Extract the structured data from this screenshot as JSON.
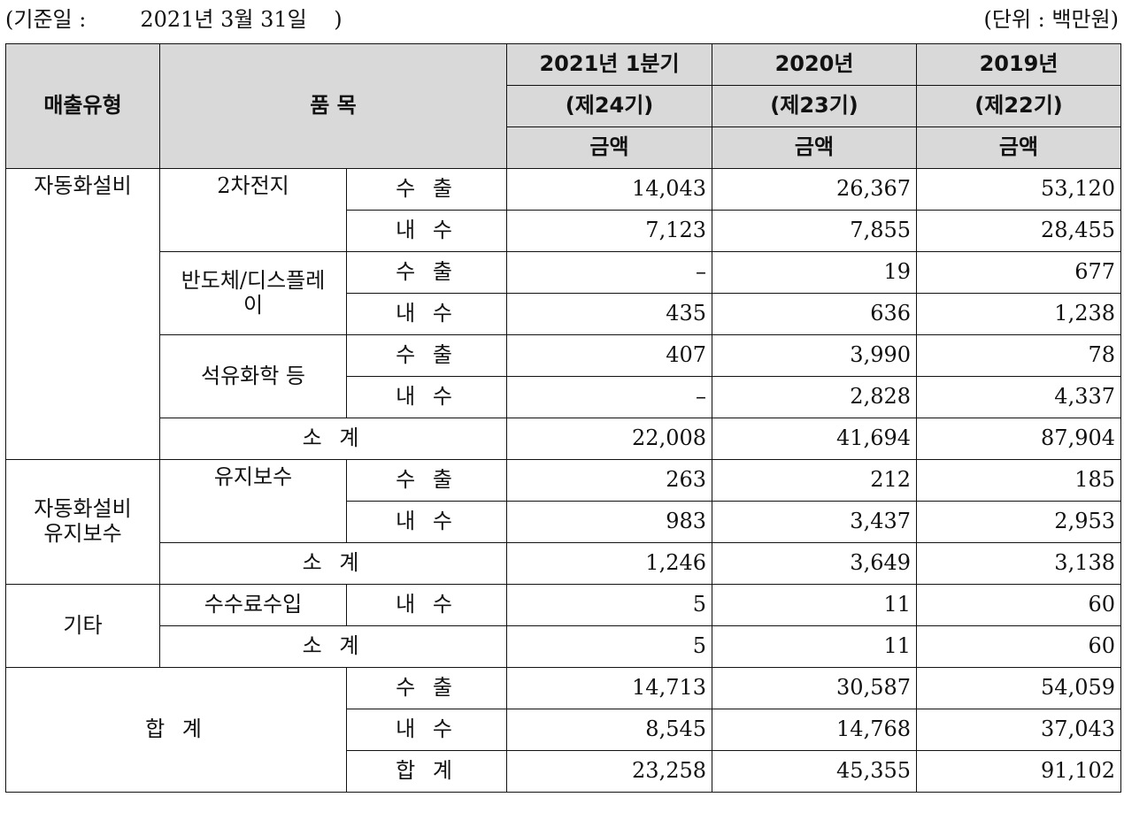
{
  "header": {
    "base_date": "(기준일 :        2021년 3월 31일    )",
    "unit": "(단위 : 백만원)"
  },
  "table": {
    "col_sales_type": "매출유형",
    "col_item": "품 목",
    "periods": [
      {
        "year": "2021년 1분기",
        "term": "(제24기)",
        "amount": "금액"
      },
      {
        "year": "2020년",
        "term": "(제23기)",
        "amount": "금액"
      },
      {
        "year": "2019년",
        "term": "(제22기)",
        "amount": "금액"
      }
    ],
    "groups": [
      {
        "type": "자동화설비",
        "items": [
          {
            "name": "2차전지",
            "rows": [
              {
                "kind": "수 출",
                "v": [
                  "14,043",
                  "26,367",
                  "53,120"
                ]
              },
              {
                "kind": "내 수",
                "v": [
                  "7,123",
                  "7,855",
                  "28,455"
                ]
              }
            ]
          },
          {
            "name": "반도체/디스플레이",
            "rows": [
              {
                "kind": "수 출",
                "v": [
                  "–",
                  "19",
                  "677"
                ]
              },
              {
                "kind": "내 수",
                "v": [
                  "435",
                  "636",
                  "1,238"
                ]
              }
            ]
          },
          {
            "name": "석유화학 등",
            "rows": [
              {
                "kind": "수 출",
                "v": [
                  "407",
                  "3,990",
                  "78"
                ]
              },
              {
                "kind": "내 수",
                "v": [
                  "–",
                  "2,828",
                  "4,337"
                ]
              }
            ]
          }
        ],
        "subtotal": {
          "label": "소 계",
          "v": [
            "22,008",
            "41,694",
            "87,904"
          ]
        }
      },
      {
        "type": "자동화설비 유지보수",
        "items": [
          {
            "name": "유지보수",
            "rows": [
              {
                "kind": "수 출",
                "v": [
                  "263",
                  "212",
                  "185"
                ]
              },
              {
                "kind": "내 수",
                "v": [
                  "983",
                  "3,437",
                  "2,953"
                ]
              }
            ]
          }
        ],
        "subtotal": {
          "label": "소 계",
          "v": [
            "1,246",
            "3,649",
            "3,138"
          ]
        }
      },
      {
        "type": "기타",
        "items": [
          {
            "name": "수수료수입",
            "rows": [
              {
                "kind": "내 수",
                "v": [
                  "5",
                  "11",
                  "60"
                ]
              }
            ]
          }
        ],
        "subtotal": {
          "label": "소 계",
          "v": [
            "5",
            "11",
            "60"
          ]
        }
      }
    ],
    "total": {
      "label": "합 계",
      "rows": [
        {
          "kind": "수 출",
          "v": [
            "14,713",
            "30,587",
            "54,059"
          ]
        },
        {
          "kind": "내 수",
          "v": [
            "8,545",
            "14,768",
            "37,043"
          ]
        },
        {
          "kind": "합 계",
          "v": [
            "23,258",
            "45,355",
            "91,102"
          ]
        }
      ]
    }
  }
}
